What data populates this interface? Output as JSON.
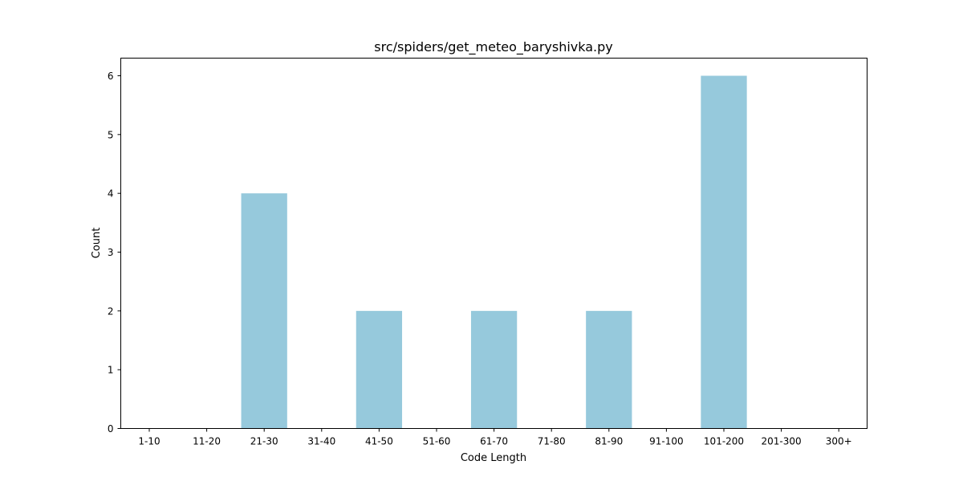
{
  "chart_data": {
    "type": "bar",
    "title": "src/spiders/get_meteo_baryshivka.py",
    "xlabel": "Code Length",
    "ylabel": "Count",
    "categories": [
      "1-10",
      "11-20",
      "21-30",
      "31-40",
      "41-50",
      "51-60",
      "61-70",
      "71-80",
      "81-90",
      "91-100",
      "101-200",
      "201-300",
      "300+"
    ],
    "values": [
      0,
      0,
      4,
      0,
      2,
      0,
      2,
      0,
      2,
      0,
      6,
      0,
      0
    ],
    "ylim": [
      0,
      6.3
    ],
    "yticks": [
      0,
      1,
      2,
      3,
      4,
      5,
      6
    ],
    "bar_color": "#96c9dc",
    "grid": false,
    "legend": "none"
  }
}
